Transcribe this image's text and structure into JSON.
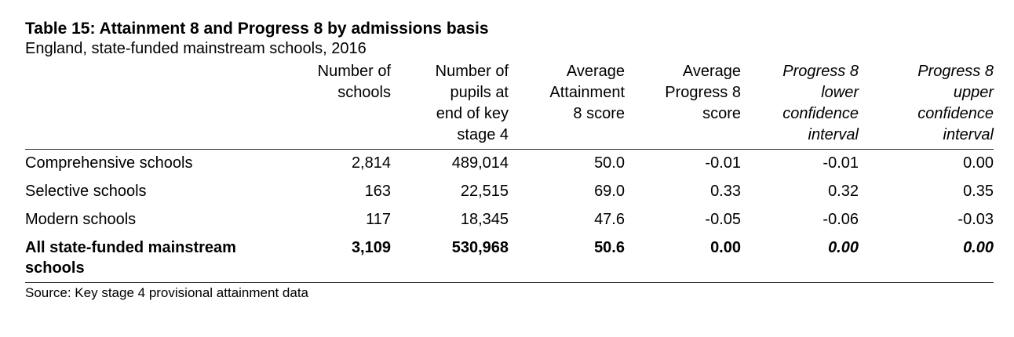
{
  "title": "Table 15: Attainment 8 and Progress 8 by admissions basis",
  "subtitle": "England, state-funded mainstream schools, 2016",
  "columns": [
    "Number of schools",
    "Number of pupils at end of key stage 4",
    "Average Attainment 8 score",
    "Average Progress 8 score",
    "Progress 8 lower confidence interval",
    "Progress 8 upper confidence interval"
  ],
  "column_lines": [
    [
      "Number of",
      "schools"
    ],
    [
      "Number of",
      "pupils at",
      "end of key",
      "stage 4"
    ],
    [
      "Average",
      "Attainment",
      "8 score"
    ],
    [
      "Average",
      "Progress 8",
      "score"
    ],
    [
      "Progress 8",
      "lower",
      "confidence",
      "interval"
    ],
    [
      "Progress 8",
      "upper",
      "confidence",
      "interval"
    ]
  ],
  "rows": [
    {
      "label": "Comprehensive schools",
      "values": [
        "2,814",
        "489,014",
        "50.0",
        "-0.01",
        "-0.01",
        "0.00"
      ]
    },
    {
      "label": "Selective schools",
      "values": [
        "163",
        "22,515",
        "69.0",
        "0.33",
        "0.32",
        "0.35"
      ]
    },
    {
      "label": "Modern schools",
      "values": [
        "117",
        "18,345",
        "47.6",
        "-0.05",
        "-0.06",
        "-0.03"
      ]
    }
  ],
  "total": {
    "label_lines": [
      "All state-funded mainstream",
      "schools"
    ],
    "values": [
      "3,109",
      "530,968",
      "50.6",
      "0.00",
      "0.00",
      "0.00"
    ]
  },
  "source": "Source: Key stage 4 provisional attainment data"
}
